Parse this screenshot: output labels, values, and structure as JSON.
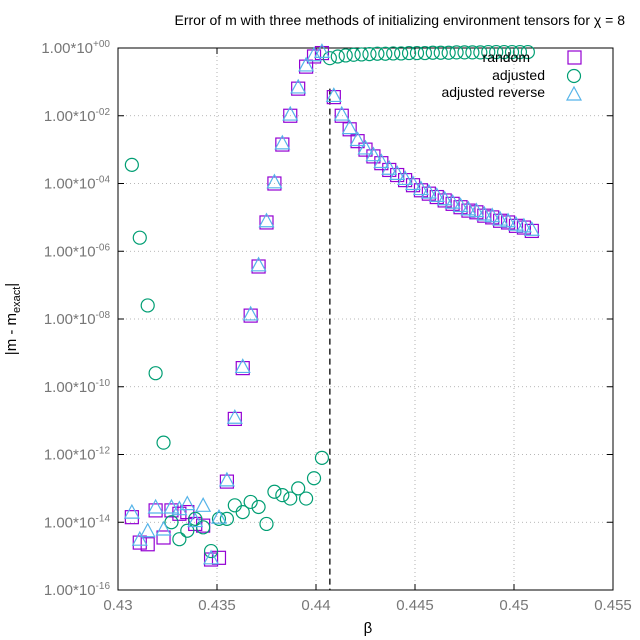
{
  "chart_data": {
    "type": "scatter",
    "title": "Error of m with three methods of initializing environment tensors for χ = 8",
    "xlabel": "β",
    "ylabel_main": "|m - m",
    "ylabel_sub": "exact",
    "ylabel_end": "|",
    "xlim": [
      0.43,
      0.455
    ],
    "ylim_log10": [
      -16,
      0
    ],
    "yscale": "log",
    "grid": true,
    "legend_position": "top-right",
    "x_ticks": [
      {
        "value": 0.43,
        "label": "0.43"
      },
      {
        "value": 0.435,
        "label": "0.435"
      },
      {
        "value": 0.44,
        "label": "0.44"
      },
      {
        "value": 0.445,
        "label": "0.445"
      },
      {
        "value": 0.45,
        "label": "0.45"
      },
      {
        "value": 0.455,
        "label": "0.455"
      }
    ],
    "y_ticks": [
      {
        "exp": 0,
        "mant": "1.00*10",
        "sup": "+00"
      },
      {
        "exp": -2,
        "mant": "1.00*10",
        "sup": "-02"
      },
      {
        "exp": -4,
        "mant": "1.00*10",
        "sup": "-04"
      },
      {
        "exp": -6,
        "mant": "1.00*10",
        "sup": "-06"
      },
      {
        "exp": -8,
        "mant": "1.00*10",
        "sup": "-08"
      },
      {
        "exp": -10,
        "mant": "1.00*10",
        "sup": "-10"
      },
      {
        "exp": -12,
        "mant": "1.00*10",
        "sup": "-12"
      },
      {
        "exp": -14,
        "mant": "1.00*10",
        "sup": "-14"
      },
      {
        "exp": -16,
        "mant": "1.00*10",
        "sup": "-16"
      }
    ],
    "vline_x": 0.4407,
    "series": [
      {
        "name": "random",
        "marker": "square",
        "color": "#9400d3",
        "points": [
          [
            0.4307,
            -13.85
          ],
          [
            0.4311,
            -14.6
          ],
          [
            0.4315,
            -14.65
          ],
          [
            0.4319,
            -13.65
          ],
          [
            0.4323,
            -14.45
          ],
          [
            0.4327,
            -13.65
          ],
          [
            0.4331,
            -13.75
          ],
          [
            0.4335,
            -13.7
          ],
          [
            0.4339,
            -14.05
          ],
          [
            0.4343,
            -14.1
          ],
          [
            0.4347,
            -15.1
          ],
          [
            0.4351,
            -15.05
          ],
          [
            0.4355,
            -12.8
          ],
          [
            0.4359,
            -10.95
          ],
          [
            0.4363,
            -9.45
          ],
          [
            0.4367,
            -7.9
          ],
          [
            0.4371,
            -6.45
          ],
          [
            0.4375,
            -5.15
          ],
          [
            0.4379,
            -4.0
          ],
          [
            0.4383,
            -2.85
          ],
          [
            0.4387,
            -2.0
          ],
          [
            0.4391,
            -1.2
          ],
          [
            0.4395,
            -0.55
          ],
          [
            0.4399,
            -0.25
          ],
          [
            0.4403,
            -0.15
          ],
          [
            0.4409,
            -1.45
          ],
          [
            0.4413,
            -2.0
          ],
          [
            0.4417,
            -2.4
          ],
          [
            0.4421,
            -2.75
          ],
          [
            0.4425,
            -3.0
          ],
          [
            0.4429,
            -3.2
          ],
          [
            0.4433,
            -3.4
          ],
          [
            0.4437,
            -3.6
          ],
          [
            0.4441,
            -3.75
          ],
          [
            0.4445,
            -3.9
          ],
          [
            0.4449,
            -4.05
          ],
          [
            0.4453,
            -4.2
          ],
          [
            0.4457,
            -4.3
          ],
          [
            0.4461,
            -4.4
          ],
          [
            0.4465,
            -4.5
          ],
          [
            0.4469,
            -4.6
          ],
          [
            0.4473,
            -4.7
          ],
          [
            0.4477,
            -4.8
          ],
          [
            0.4481,
            -4.85
          ],
          [
            0.4485,
            -4.95
          ],
          [
            0.4489,
            -5.0
          ],
          [
            0.4493,
            -5.1
          ],
          [
            0.4497,
            -5.15
          ],
          [
            0.4501,
            -5.25
          ],
          [
            0.4505,
            -5.3
          ],
          [
            0.4509,
            -5.4
          ]
        ]
      },
      {
        "name": "adjusted",
        "marker": "circle",
        "color": "#009e73",
        "points": [
          [
            0.4307,
            -3.45
          ],
          [
            0.4311,
            -5.6
          ],
          [
            0.4315,
            -7.6
          ],
          [
            0.4319,
            -9.6
          ],
          [
            0.4323,
            -11.65
          ],
          [
            0.4327,
            -14.0
          ],
          [
            0.4331,
            -14.5
          ],
          [
            0.4335,
            -14.25
          ],
          [
            0.4339,
            -13.9
          ],
          [
            0.4343,
            -14.15
          ],
          [
            0.4347,
            -14.85
          ],
          [
            0.4351,
            -13.9
          ],
          [
            0.4355,
            -13.9
          ],
          [
            0.4359,
            -13.5
          ],
          [
            0.4363,
            -13.7
          ],
          [
            0.4367,
            -13.4
          ],
          [
            0.4371,
            -13.55
          ],
          [
            0.4375,
            -14.05
          ],
          [
            0.4379,
            -13.1
          ],
          [
            0.4383,
            -13.2
          ],
          [
            0.4387,
            -13.3
          ],
          [
            0.4391,
            -13.0
          ],
          [
            0.4395,
            -13.3
          ],
          [
            0.4399,
            -12.7
          ],
          [
            0.4403,
            -12.1
          ],
          [
            0.4407,
            -0.3
          ],
          [
            0.4411,
            -0.25
          ],
          [
            0.4415,
            -0.22
          ],
          [
            0.4419,
            -0.2
          ],
          [
            0.4423,
            -0.19
          ],
          [
            0.4427,
            -0.18
          ],
          [
            0.4431,
            -0.17
          ],
          [
            0.4435,
            -0.17
          ],
          [
            0.4439,
            -0.16
          ],
          [
            0.4443,
            -0.16
          ],
          [
            0.4447,
            -0.15
          ],
          [
            0.4451,
            -0.15
          ],
          [
            0.4455,
            -0.15
          ],
          [
            0.4459,
            -0.14
          ],
          [
            0.4463,
            -0.14
          ],
          [
            0.4467,
            -0.14
          ],
          [
            0.4471,
            -0.13
          ],
          [
            0.4475,
            -0.13
          ],
          [
            0.4479,
            -0.13
          ],
          [
            0.4483,
            -0.13
          ],
          [
            0.4487,
            -0.12
          ],
          [
            0.4491,
            -0.12
          ],
          [
            0.4495,
            -0.12
          ],
          [
            0.4499,
            -0.12
          ],
          [
            0.4503,
            -0.12
          ],
          [
            0.4507,
            -0.12
          ]
        ]
      },
      {
        "name": "adjusted reverse",
        "marker": "triangle",
        "color": "#56b4e9",
        "points": [
          [
            0.4307,
            -13.7
          ],
          [
            0.4311,
            -14.5
          ],
          [
            0.4315,
            -14.25
          ],
          [
            0.4319,
            -13.55
          ],
          [
            0.4323,
            -14.2
          ],
          [
            0.4327,
            -13.55
          ],
          [
            0.4331,
            -13.6
          ],
          [
            0.4335,
            -13.45
          ],
          [
            0.4339,
            -13.95
          ],
          [
            0.4343,
            -13.5
          ],
          [
            0.4347,
            -15.05
          ],
          [
            0.4351,
            -13.85
          ],
          [
            0.4355,
            -12.75
          ],
          [
            0.4359,
            -10.9
          ],
          [
            0.4363,
            -9.4
          ],
          [
            0.4367,
            -7.85
          ],
          [
            0.4371,
            -6.4
          ],
          [
            0.4375,
            -5.1
          ],
          [
            0.4379,
            -3.95
          ],
          [
            0.4383,
            -2.8
          ],
          [
            0.4387,
            -1.95
          ],
          [
            0.4391,
            -1.15
          ],
          [
            0.4395,
            -0.5
          ],
          [
            0.4399,
            -0.2
          ],
          [
            0.4403,
            -0.1
          ],
          [
            0.4409,
            -1.4
          ],
          [
            0.4413,
            -1.95
          ],
          [
            0.4417,
            -2.35
          ],
          [
            0.4421,
            -2.7
          ],
          [
            0.4425,
            -2.95
          ],
          [
            0.4429,
            -3.15
          ],
          [
            0.4433,
            -3.35
          ],
          [
            0.4437,
            -3.55
          ],
          [
            0.4441,
            -3.7
          ],
          [
            0.4445,
            -3.85
          ],
          [
            0.4449,
            -4.0
          ],
          [
            0.4453,
            -4.15
          ],
          [
            0.4457,
            -4.25
          ],
          [
            0.4461,
            -4.35
          ],
          [
            0.4465,
            -4.45
          ],
          [
            0.4469,
            -4.55
          ],
          [
            0.4473,
            -4.65
          ],
          [
            0.4477,
            -4.75
          ],
          [
            0.4481,
            -4.8
          ],
          [
            0.4485,
            -4.9
          ],
          [
            0.4489,
            -4.95
          ],
          [
            0.4493,
            -5.05
          ],
          [
            0.4497,
            -5.1
          ],
          [
            0.4501,
            -5.2
          ],
          [
            0.4505,
            -5.25
          ],
          [
            0.4509,
            -5.35
          ]
        ]
      }
    ]
  }
}
